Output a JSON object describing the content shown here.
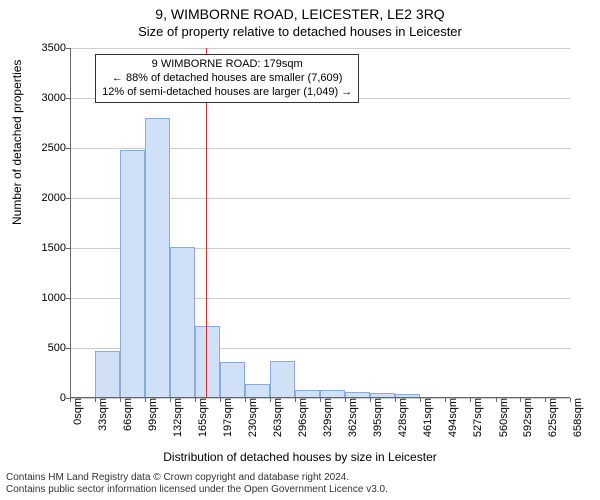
{
  "titles": {
    "line1": "9, WIMBORNE ROAD, LEICESTER, LE2 3RQ",
    "line2": "Size of property relative to detached houses in Leicester"
  },
  "chart": {
    "type": "histogram",
    "y_axis_title": "Number of detached properties",
    "x_axis_title": "Distribution of detached houses by size in Leicester",
    "ylim": [
      0,
      3500
    ],
    "ytick_step": 500,
    "y_ticks": [
      0,
      500,
      1000,
      1500,
      2000,
      2500,
      3000,
      3500
    ],
    "x_ticks_step": 33,
    "x_ticks": [
      0,
      33,
      66,
      99,
      132,
      165,
      197,
      230,
      263,
      296,
      329,
      362,
      395,
      428,
      461,
      494,
      527,
      560,
      592,
      625,
      658
    ],
    "x_tick_unit": "sqm",
    "bar_fill": "#cfe0f7",
    "bar_stroke": "#88aadd",
    "grid_color": "#cccccc",
    "background_color": "#ffffff",
    "marker": {
      "x": 179,
      "color": "#cc3333"
    },
    "callout": {
      "line1": "9 WIMBORNE ROAD: 179sqm",
      "line2": "← 88% of detached houses are smaller (7,609)",
      "line3": "12% of semi-detached houses are larger (1,049) →"
    },
    "bars": [
      {
        "x_start": 33,
        "count": 470
      },
      {
        "x_start": 66,
        "count": 2480
      },
      {
        "x_start": 99,
        "count": 2800
      },
      {
        "x_start": 132,
        "count": 1510
      },
      {
        "x_start": 165,
        "count": 720
      },
      {
        "x_start": 197,
        "count": 360
      },
      {
        "x_start": 230,
        "count": 140
      },
      {
        "x_start": 263,
        "count": 370
      },
      {
        "x_start": 296,
        "count": 85
      },
      {
        "x_start": 329,
        "count": 80
      },
      {
        "x_start": 362,
        "count": 60
      },
      {
        "x_start": 395,
        "count": 55
      },
      {
        "x_start": 428,
        "count": 40
      }
    ]
  },
  "footer": {
    "line1": "Contains HM Land Registry data © Crown copyright and database right 2024.",
    "line2": "Contains public sector information licensed under the Open Government Licence v3.0."
  }
}
